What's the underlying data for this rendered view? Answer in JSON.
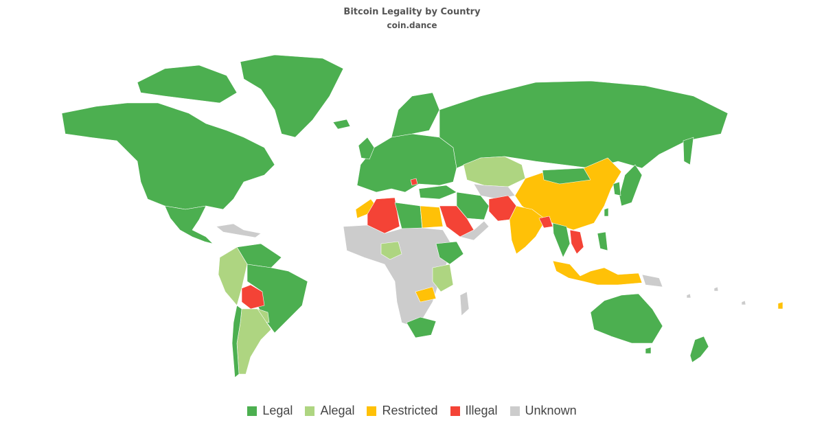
{
  "title": "Bitcoin Legality by Country",
  "subtitle": "coin.dance",
  "colors": {
    "legal": "#4caf50",
    "alegal": "#aed581",
    "restricted": "#ffc107",
    "illegal": "#f44336",
    "unknown": "#cccccc"
  },
  "legend": [
    {
      "key": "legal",
      "label": "Legal"
    },
    {
      "key": "alegal",
      "label": "Alegal"
    },
    {
      "key": "restricted",
      "label": "Restricted"
    },
    {
      "key": "illegal",
      "label": "Illegal"
    },
    {
      "key": "unknown",
      "label": "Unknown"
    }
  ],
  "regions": [
    {
      "name": "north-america",
      "status": "legal"
    },
    {
      "name": "greenland",
      "status": "legal"
    },
    {
      "name": "mexico-central-america",
      "status": "legal"
    },
    {
      "name": "caribbean",
      "status": "unknown"
    },
    {
      "name": "colombia-peru-paraguay",
      "status": "alegal"
    },
    {
      "name": "venezuela-guyanas",
      "status": "legal"
    },
    {
      "name": "brazil",
      "status": "legal"
    },
    {
      "name": "bolivia",
      "status": "illegal"
    },
    {
      "name": "argentina",
      "status": "alegal"
    },
    {
      "name": "chile",
      "status": "legal"
    },
    {
      "name": "europe",
      "status": "legal"
    },
    {
      "name": "iceland",
      "status": "legal"
    },
    {
      "name": "scandinavia",
      "status": "legal"
    },
    {
      "name": "north-macedonia",
      "status": "illegal"
    },
    {
      "name": "russia",
      "status": "legal"
    },
    {
      "name": "kazakhstan",
      "status": "alegal"
    },
    {
      "name": "central-asia",
      "status": "unknown"
    },
    {
      "name": "china",
      "status": "restricted"
    },
    {
      "name": "india",
      "status": "restricted"
    },
    {
      "name": "afghanistan-pakistan",
      "status": "illegal"
    },
    {
      "name": "iran-turkey",
      "status": "legal"
    },
    {
      "name": "saudi-arabia",
      "status": "illegal"
    },
    {
      "name": "algeria",
      "status": "illegal"
    },
    {
      "name": "morocco",
      "status": "restricted"
    },
    {
      "name": "libya-tunisia",
      "status": "legal"
    },
    {
      "name": "egypt",
      "status": "restricted"
    },
    {
      "name": "west-central-africa",
      "status": "unknown"
    },
    {
      "name": "nigeria",
      "status": "alegal"
    },
    {
      "name": "ethiopia",
      "status": "legal"
    },
    {
      "name": "kenya-tanzania",
      "status": "alegal"
    },
    {
      "name": "zambia-malawi",
      "status": "restricted"
    },
    {
      "name": "south-africa",
      "status": "legal"
    },
    {
      "name": "madagascar",
      "status": "unknown"
    },
    {
      "name": "bangladesh-nepal",
      "status": "illegal"
    },
    {
      "name": "vietnam-cambodia",
      "status": "illegal"
    },
    {
      "name": "thailand-myanmar",
      "status": "legal"
    },
    {
      "name": "indonesia",
      "status": "restricted"
    },
    {
      "name": "papua-new-guinea",
      "status": "unknown"
    },
    {
      "name": "philippines",
      "status": "legal"
    },
    {
      "name": "japan-korea",
      "status": "legal"
    },
    {
      "name": "taiwan",
      "status": "legal"
    },
    {
      "name": "australia",
      "status": "legal"
    },
    {
      "name": "new-zealand",
      "status": "legal"
    },
    {
      "name": "pacific-islands",
      "status": "unknown"
    }
  ]
}
